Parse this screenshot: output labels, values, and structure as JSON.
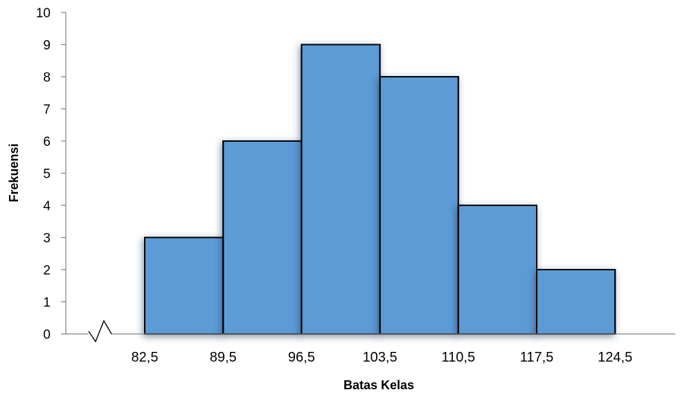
{
  "chart_data": {
    "type": "bar",
    "subtype": "histogram",
    "title": "",
    "xlabel": "Batas Kelas",
    "ylabel": "Frekuensi",
    "bin_edges": [
      "82,5",
      "89,5",
      "96,5",
      "103,5",
      "110,5",
      "117,5",
      "124,5"
    ],
    "bin_edge_values": [
      82.5,
      89.5,
      96.5,
      103.5,
      110.5,
      117.5,
      124.5
    ],
    "values": [
      3,
      6,
      9,
      8,
      4,
      2
    ],
    "ylim": [
      0,
      10
    ],
    "yticks": [
      0,
      1,
      2,
      3,
      4,
      5,
      6,
      7,
      8,
      9,
      10
    ],
    "grid": false,
    "legend": "none",
    "axis_break": true,
    "colors": {
      "bar_fill": "#5b9bd5",
      "bar_edge": "#000000",
      "bar_shadow": "#1f3a5c",
      "axis": "#7f7f7f"
    }
  }
}
